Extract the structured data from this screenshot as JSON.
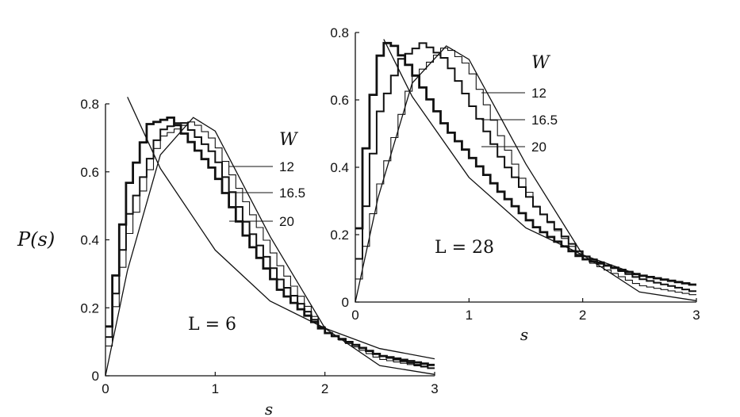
{
  "chart_data": [
    {
      "type": "line",
      "ylabel": "P(s)",
      "xlabel": "s",
      "annotation": "L = 6",
      "legend_title": "W",
      "xlim": [
        0,
        3
      ],
      "ylim": [
        0,
        0.8
      ],
      "x_ticks": [
        0,
        1,
        2,
        3
      ],
      "y_ticks": [
        0,
        0.2,
        0.4,
        0.6,
        0.8
      ],
      "reference_curves": [
        {
          "kind": "poisson",
          "x": [
            0.2,
            0.5,
            1.0,
            1.5,
            2.0,
            2.5,
            3.0
          ],
          "y": [
            0.82,
            0.61,
            0.37,
            0.22,
            0.14,
            0.08,
            0.05
          ]
        },
        {
          "kind": "wigner-dyson",
          "x": [
            0,
            0.2,
            0.5,
            0.8,
            1.0,
            1.5,
            2.0,
            2.5,
            3.0
          ],
          "y": [
            0,
            0.31,
            0.65,
            0.76,
            0.72,
            0.41,
            0.14,
            0.03,
            0.004
          ]
        }
      ],
      "series": [
        {
          "name": "12",
          "x": [
            0,
            0.2,
            0.5,
            0.8,
            1.0,
            1.3,
            1.6,
            2.0,
            2.5,
            3.0
          ],
          "y": [
            0.03,
            0.4,
            0.7,
            0.75,
            0.69,
            0.5,
            0.32,
            0.13,
            0.05,
            0.02
          ]
        },
        {
          "name": "16.5",
          "x": [
            0,
            0.2,
            0.5,
            0.7,
            1.0,
            1.3,
            1.6,
            2.0,
            2.5,
            3.0
          ],
          "y": [
            0.05,
            0.46,
            0.72,
            0.75,
            0.65,
            0.44,
            0.28,
            0.13,
            0.06,
            0.02
          ]
        },
        {
          "name": "20",
          "x": [
            0,
            0.2,
            0.4,
            0.6,
            1.0,
            1.3,
            1.6,
            2.0,
            2.5,
            3.0
          ],
          "y": [
            0.07,
            0.55,
            0.74,
            0.76,
            0.6,
            0.4,
            0.25,
            0.13,
            0.06,
            0.03
          ]
        }
      ]
    },
    {
      "type": "line",
      "xlabel": "s",
      "annotation": "L = 28",
      "legend_title": "W",
      "xlim": [
        0,
        3
      ],
      "ylim": [
        0,
        0.8
      ],
      "x_ticks": [
        0,
        1,
        2,
        3
      ],
      "y_ticks": [
        0,
        0.2,
        0.4,
        0.6,
        0.8
      ],
      "reference_curves": [
        {
          "kind": "poisson",
          "x": [
            0.25,
            0.5,
            1.0,
            1.5,
            2.0,
            2.5,
            3.0
          ],
          "y": [
            0.78,
            0.61,
            0.37,
            0.22,
            0.14,
            0.08,
            0.05
          ]
        },
        {
          "kind": "wigner-dyson",
          "x": [
            0,
            0.2,
            0.5,
            0.8,
            1.0,
            1.5,
            2.0,
            2.5,
            3.0
          ],
          "y": [
            0,
            0.31,
            0.65,
            0.76,
            0.72,
            0.41,
            0.14,
            0.03,
            0.004
          ]
        }
      ],
      "series": [
        {
          "name": "12",
          "x": [
            0,
            0.2,
            0.5,
            0.8,
            1.0,
            1.3,
            1.6,
            2.0,
            2.5,
            3.0
          ],
          "y": [
            0.02,
            0.33,
            0.66,
            0.76,
            0.7,
            0.48,
            0.28,
            0.13,
            0.05,
            0.02
          ]
        },
        {
          "name": "16.5",
          "x": [
            0,
            0.2,
            0.4,
            0.6,
            0.8,
            1.0,
            1.3,
            1.6,
            2.0,
            2.5,
            3.0
          ],
          "y": [
            0.05,
            0.55,
            0.72,
            0.77,
            0.72,
            0.6,
            0.42,
            0.28,
            0.14,
            0.07,
            0.03
          ]
        },
        {
          "name": "20",
          "x": [
            0,
            0.1,
            0.2,
            0.3,
            0.5,
            0.8,
            1.0,
            1.3,
            1.6,
            2.0,
            2.5,
            3.0
          ],
          "y": [
            0.1,
            0.48,
            0.72,
            0.78,
            0.69,
            0.52,
            0.44,
            0.32,
            0.22,
            0.13,
            0.08,
            0.05
          ]
        }
      ]
    }
  ]
}
